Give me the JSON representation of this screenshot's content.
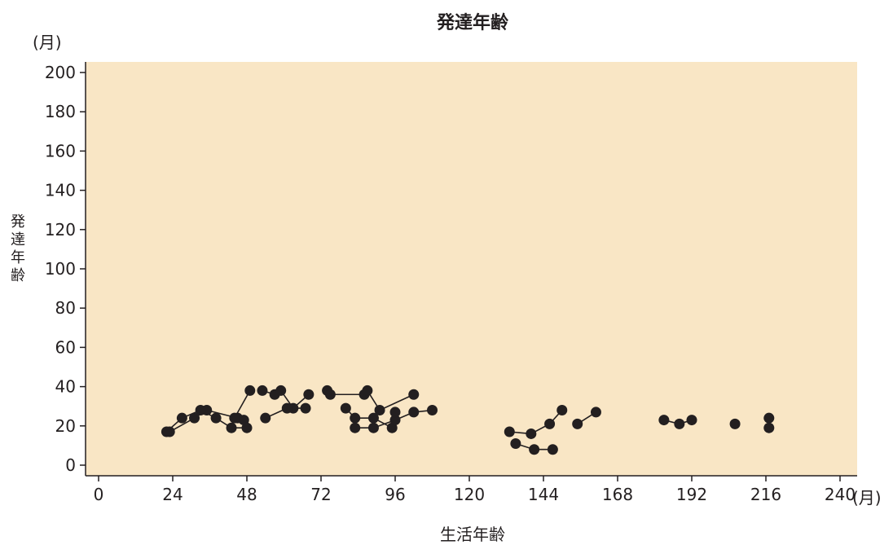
{
  "chart_data": {
    "type": "line",
    "title": "発達年齢",
    "xlabel": "生活年齢",
    "ylabel": "発達年齢",
    "x_unit": "(月)",
    "y_unit": "(月)",
    "xlim": [
      0,
      240
    ],
    "ylim": [
      0,
      200
    ],
    "x_ticks": [
      0,
      24,
      48,
      72,
      96,
      120,
      144,
      168,
      192,
      216,
      240
    ],
    "y_ticks": [
      0,
      20,
      40,
      60,
      80,
      100,
      120,
      140,
      160,
      180,
      200
    ],
    "grid": false,
    "series": [
      {
        "x": [
          23,
          31,
          35,
          45,
          47
        ],
        "y": [
          17,
          24,
          28,
          24,
          23
        ]
      },
      {
        "x": [
          22,
          27,
          33,
          38,
          43,
          48
        ],
        "y": [
          17,
          24,
          28,
          24,
          19,
          19
        ]
      },
      {
        "x": [
          44,
          49
        ],
        "y": [
          24,
          38
        ]
      },
      {
        "x": [
          53,
          57,
          59,
          63,
          68
        ],
        "y": [
          38,
          36,
          38,
          29,
          36
        ]
      },
      {
        "x": [
          54,
          61,
          67
        ],
        "y": [
          24,
          29,
          29
        ]
      },
      {
        "x": [
          74,
          75,
          86,
          87,
          91,
          102
        ],
        "y": [
          38,
          36,
          36,
          38,
          28,
          36
        ]
      },
      {
        "x": [
          80,
          83,
          89,
          95
        ],
        "y": [
          29,
          24,
          24,
          19
        ]
      },
      {
        "x": [
          83,
          89,
          96,
          102,
          108
        ],
        "y": [
          19,
          19,
          23,
          27,
          28
        ]
      },
      {
        "x": [
          96
        ],
        "y": [
          27
        ]
      },
      {
        "x": [
          133,
          140,
          146,
          150
        ],
        "y": [
          17,
          16,
          21,
          28
        ]
      },
      {
        "x": [
          135,
          141,
          147
        ],
        "y": [
          11,
          8,
          8
        ]
      },
      {
        "x": [
          155,
          161
        ],
        "y": [
          21,
          27
        ]
      },
      {
        "x": [
          183,
          188,
          192
        ],
        "y": [
          23,
          21,
          23
        ]
      },
      {
        "x": [
          206
        ],
        "y": [
          21
        ]
      },
      {
        "x": [
          217
        ],
        "y": [
          24
        ]
      },
      {
        "x": [
          217
        ],
        "y": [
          19
        ]
      }
    ]
  },
  "colors": {
    "plot_background": "#f9e6c5",
    "marker": "#231f20",
    "axis": "#231f20"
  }
}
